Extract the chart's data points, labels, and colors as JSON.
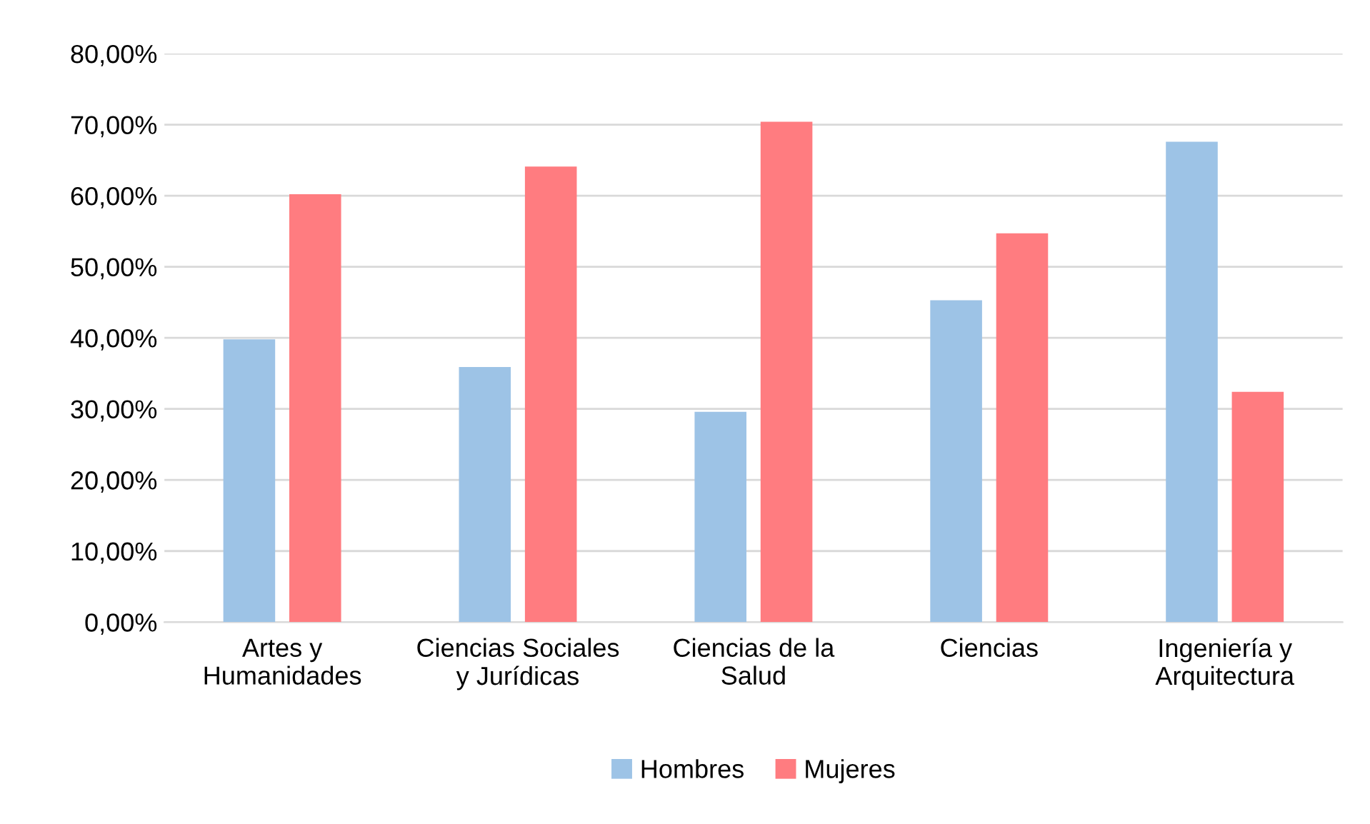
{
  "chart_data": {
    "type": "bar",
    "categories": [
      "Artes y\nHumanidades",
      "Ciencias Sociales\ny Jurídicas",
      "Ciencias de la\nSalud",
      "Ciencias",
      "Ingeniería y\nArquitectura"
    ],
    "series": [
      {
        "name": "Hombres",
        "color": "#9dc3e6",
        "values": [
          39.8,
          35.9,
          29.6,
          45.3,
          67.6
        ]
      },
      {
        "name": "Mujeres",
        "color": "#ff7c80",
        "values": [
          60.2,
          64.1,
          70.4,
          54.7,
          32.4
        ]
      }
    ],
    "ylim": [
      0,
      80
    ],
    "yticks": [
      {
        "value": 0,
        "label": "0,00%"
      },
      {
        "value": 10,
        "label": "10,00%"
      },
      {
        "value": 20,
        "label": "20,00%"
      },
      {
        "value": 30,
        "label": "30,00%"
      },
      {
        "value": 40,
        "label": "40,00%"
      },
      {
        "value": 50,
        "label": "50,00%"
      },
      {
        "value": 60,
        "label": "60,00%"
      },
      {
        "value": 70,
        "label": "70,00%"
      },
      {
        "value": 80,
        "label": "80,00%"
      }
    ],
    "grid": "y",
    "legend": "bottom"
  }
}
